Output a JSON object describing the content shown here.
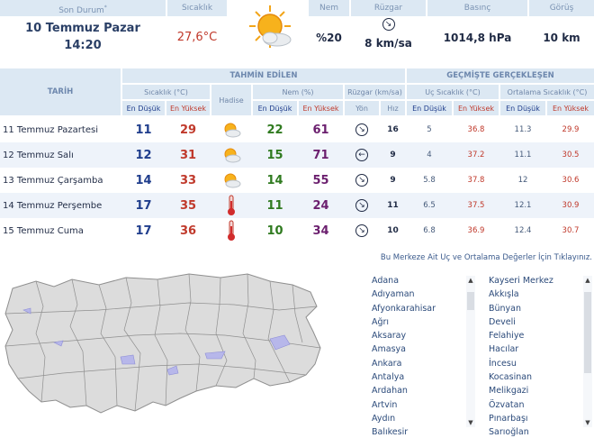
{
  "current": {
    "headers": {
      "son_durum": "Son Durum",
      "sicaklik": "Sıcaklık",
      "nem": "Nem",
      "ruzgar": "Rüzgar",
      "basinc": "Basınç",
      "goruus": "Görüş"
    },
    "date": "10 Temmuz Pazar",
    "time": "14:20",
    "temperature": "27,6°C",
    "humidity": "%20",
    "wind": "8 km/sa",
    "wind_arrow": "↘",
    "pressure": "1014,8 hPa",
    "visibility": "10 km"
  },
  "forecast_header": {
    "tarih": "TARİH",
    "tahmin": "TAHMİN EDİLEN",
    "gecmis": "GEÇMİŞTE GERÇEKLEŞEN",
    "sicaklik": "Sıcaklık (°C)",
    "hadise": "Hadise",
    "nem": "Nem (%)",
    "ruzgar": "Rüzgar (km/sa)",
    "uc": "Uç Sıcaklık (°C)",
    "ort": "Ortalama Sıcaklık (°C)",
    "en_dusuk": "En Düşük",
    "en_yuksek": "En Yüksek",
    "yon": "Yön",
    "hiz": "Hız"
  },
  "rows": [
    {
      "date": "11 Temmuz Pazartesi",
      "t_lo": "11",
      "t_hi": "29",
      "icon": "partly-cloudy-icon",
      "h_lo": "22",
      "h_hi": "61",
      "dir": "↘",
      "speed": "16",
      "u_lo": "5",
      "u_hi": "36.8",
      "o_lo": "11.3",
      "o_hi": "29.9"
    },
    {
      "date": "12 Temmuz Salı",
      "t_lo": "12",
      "t_hi": "31",
      "icon": "partly-cloudy-icon",
      "h_lo": "15",
      "h_hi": "71",
      "dir": "←",
      "speed": "9",
      "u_lo": "4",
      "u_hi": "37.2",
      "o_lo": "11.1",
      "o_hi": "30.5"
    },
    {
      "date": "13 Temmuz Çarşamba",
      "t_lo": "14",
      "t_hi": "33",
      "icon": "partly-cloudy-icon",
      "h_lo": "14",
      "h_hi": "55",
      "dir": "↘",
      "speed": "9",
      "u_lo": "5.8",
      "u_hi": "37.8",
      "o_lo": "12",
      "o_hi": "30.6"
    },
    {
      "date": "14 Temmuz Perşembe",
      "t_lo": "17",
      "t_hi": "35",
      "icon": "thermometer-hot-icon",
      "h_lo": "11",
      "h_hi": "24",
      "dir": "↘",
      "speed": "11",
      "u_lo": "6.5",
      "u_hi": "37.5",
      "o_lo": "12.1",
      "o_hi": "30.9"
    },
    {
      "date": "15 Temmuz Cuma",
      "t_lo": "17",
      "t_hi": "36",
      "icon": "thermometer-hot-icon",
      "h_lo": "10",
      "h_hi": "34",
      "dir": "↘",
      "speed": "10",
      "u_lo": "6.8",
      "u_hi": "36.9",
      "o_lo": "12.4",
      "o_hi": "30.7"
    }
  ],
  "center_link": "Bu Merkeze Ait Uç ve Ortalama Değerler İçin Tıklayınız.",
  "cities_left": [
    "Adana",
    "Adıyaman",
    "Afyonkarahisar",
    "Ağrı",
    "Aksaray",
    "Amasya",
    "Ankara",
    "Antalya",
    "Ardahan",
    "Artvin",
    "Aydın",
    "Balıkesir"
  ],
  "cities_right": [
    "Kayseri Merkez",
    "Akkışla",
    "Bünyan",
    "Develi",
    "Felahiye",
    "Hacılar",
    "İncesu",
    "Kocasinan",
    "Melikgazi",
    "Özvatan",
    "Pınarbaşı",
    "Sarıoğlan"
  ]
}
